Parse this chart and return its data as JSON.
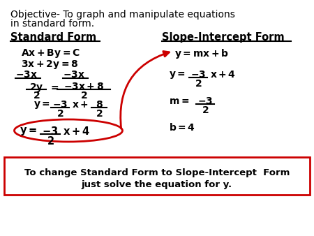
{
  "bg_color": "#ffffff",
  "title_line1": "Objective- To graph and manipulate equations",
  "title_line2": "in standard form.",
  "left_header": "Standard Form",
  "right_header": "Slope-Intercept Form",
  "bottom_line1": "To change Standard Form to Slope-Intercept  Form",
  "bottom_line2": "just solve the equation for y.",
  "black": "#000000",
  "red": "#cc0000"
}
